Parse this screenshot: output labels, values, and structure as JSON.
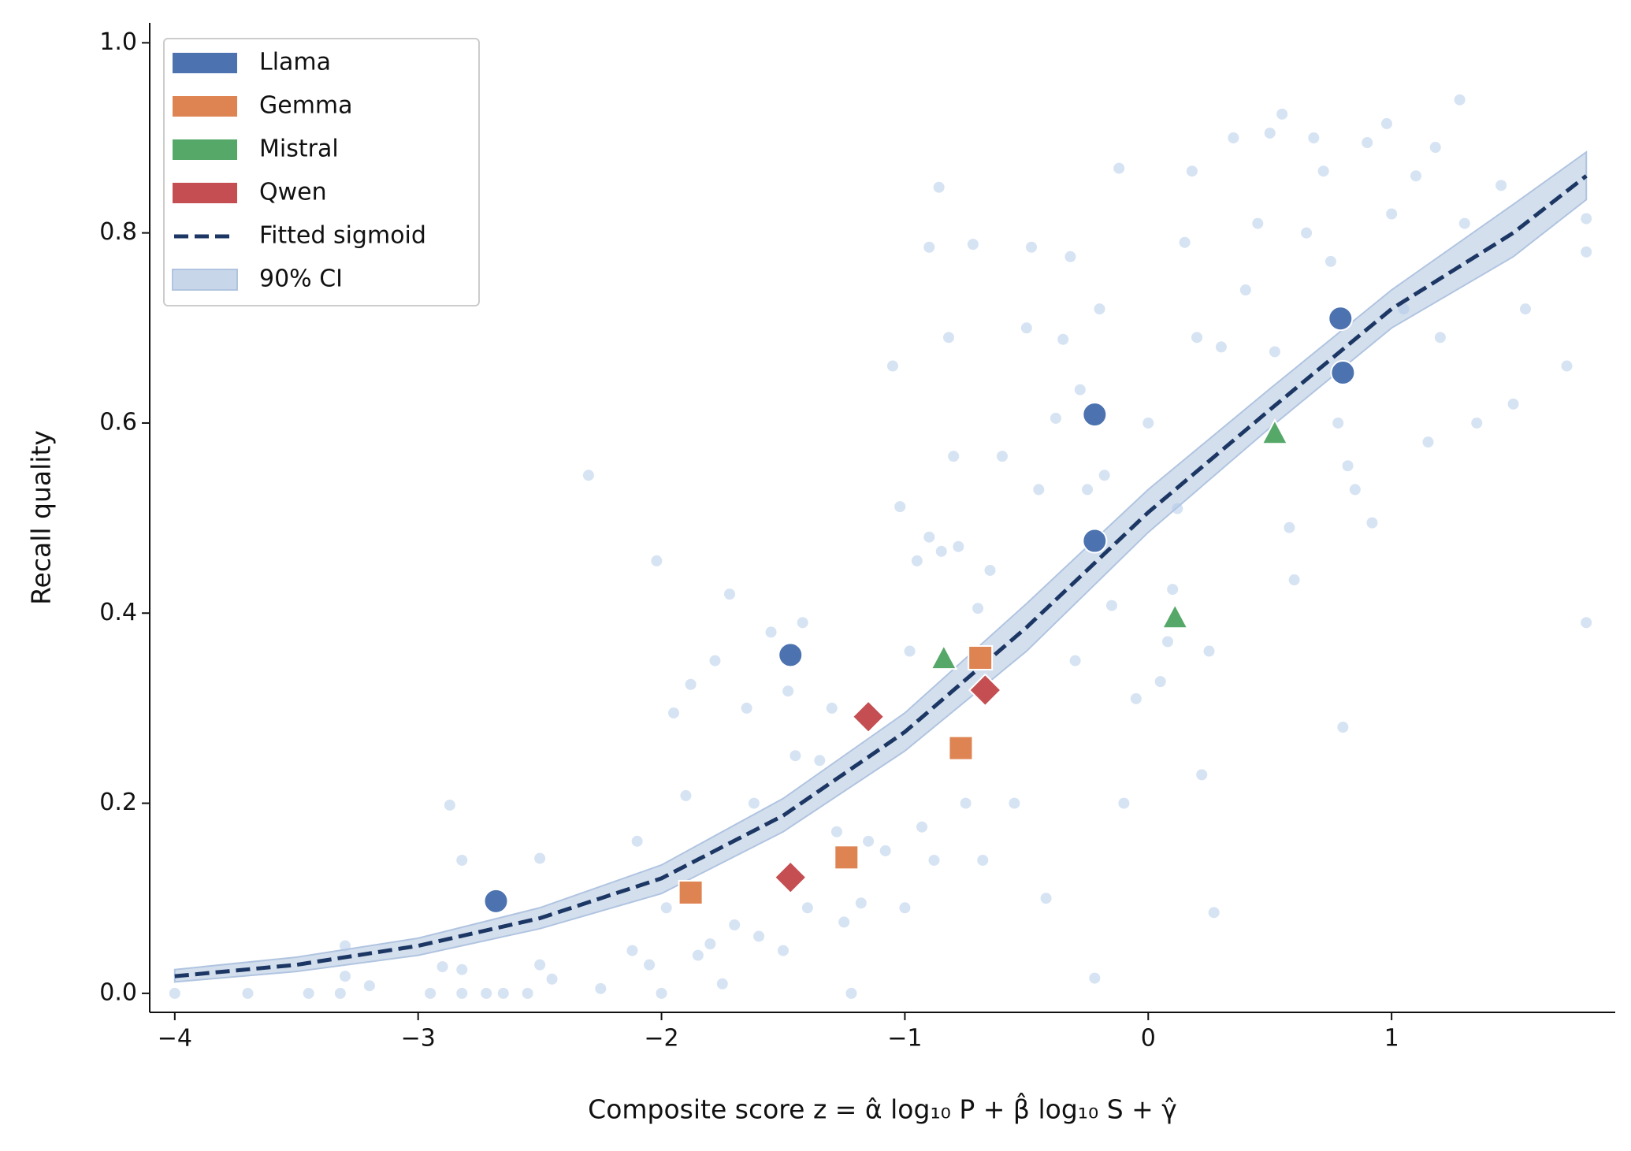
{
  "chart_data": {
    "type": "scatter",
    "x_label": "Composite score  z = α̂ log₁₀ P + β̂ log₁₀ S + γ̂",
    "y_label": "Recall quality",
    "xlim": [
      -4.103,
      1.919
    ],
    "ylim": [
      -0.02,
      1.021
    ],
    "xticks": [
      {
        "value": -4,
        "label": "−4"
      },
      {
        "value": -3,
        "label": "−3"
      },
      {
        "value": -2,
        "label": "−2"
      },
      {
        "value": -1,
        "label": "−1"
      },
      0,
      1
    ],
    "yticks": [
      {
        "value": 0,
        "label": "0.0"
      },
      0.2,
      0.4,
      0.6,
      0.8,
      {
        "value": 1,
        "label": "1.0"
      }
    ],
    "legend": "upper left",
    "background_points": {
      "color": "#aec7e8",
      "x": [
        -4,
        -3.7,
        -3.45,
        -3.32,
        -3.3,
        -3.3,
        -3.2,
        -2.95,
        -2.9,
        -2.87,
        -2.82,
        -2.82,
        -2.82,
        -2.72,
        -2.65,
        -2.55,
        -2.5,
        -2.5,
        -2.45,
        -2.3,
        -2.25,
        -2.12,
        -2.1,
        -2.05,
        -2.02,
        -2.0,
        -1.98,
        -1.95,
        -1.9,
        -1.88,
        -1.85,
        -1.8,
        -1.78,
        -1.75,
        -1.72,
        -1.7,
        -1.65,
        -1.62,
        -1.6,
        -1.55,
        -1.5,
        -1.48,
        -1.45,
        -1.42,
        -1.4,
        -1.35,
        -1.3,
        -1.28,
        -1.25,
        -1.22,
        -1.18,
        -1.15,
        -1.08,
        -1.05,
        -1.02,
        -1.0,
        -0.98,
        -0.95,
        -0.93,
        -0.9,
        -0.9,
        -0.88,
        -0.86,
        -0.85,
        -0.82,
        -0.8,
        -0.78,
        -0.75,
        -0.72,
        -0.7,
        -0.68,
        -0.65,
        -0.6,
        -0.55,
        -0.5,
        -0.48,
        -0.45,
        -0.42,
        -0.38,
        -0.35,
        -0.32,
        -0.3,
        -0.28,
        -0.25,
        -0.22,
        -0.2,
        -0.18,
        -0.15,
        -0.12,
        -0.1,
        -0.05,
        0,
        0.05,
        0.08,
        0.1,
        0.12,
        0.15,
        0.18,
        0.2,
        0.22,
        0.25,
        0.27,
        0.3,
        0.35,
        0.4,
        0.45,
        0.5,
        0.52,
        0.55,
        0.58,
        0.6,
        0.65,
        0.68,
        0.72,
        0.75,
        0.78,
        0.8,
        0.82,
        0.85,
        0.9,
        0.92,
        0.98,
        1.0,
        1.05,
        1.1,
        1.15,
        1.18,
        1.2,
        1.28,
        1.3,
        1.35,
        1.45,
        1.5,
        1.55,
        1.72,
        1.8,
        1.8,
        1.8
      ],
      "y": [
        0,
        0,
        0,
        0,
        0.018,
        0.05,
        0.008,
        0,
        0.028,
        0.198,
        0.14,
        0.025,
        0,
        0,
        0,
        0,
        0.03,
        0.142,
        0.015,
        0.545,
        0.005,
        0.045,
        0.16,
        0.03,
        0.455,
        0,
        0.09,
        0.295,
        0.208,
        0.325,
        0.04,
        0.052,
        0.35,
        0.01,
        0.42,
        0.072,
        0.3,
        0.2,
        0.06,
        0.38,
        0.045,
        0.318,
        0.25,
        0.39,
        0.09,
        0.245,
        0.3,
        0.17,
        0.075,
        0,
        0.095,
        0.16,
        0.15,
        0.66,
        0.512,
        0.09,
        0.36,
        0.455,
        0.175,
        0.785,
        0.48,
        0.14,
        0.848,
        0.465,
        0.69,
        0.565,
        0.47,
        0.2,
        0.788,
        0.405,
        0.14,
        0.445,
        0.565,
        0.2,
        0.7,
        0.785,
        0.53,
        0.1,
        0.605,
        0.688,
        0.775,
        0.35,
        0.635,
        0.53,
        0.016,
        0.72,
        0.545,
        0.408,
        0.868,
        0.2,
        0.31,
        0.6,
        0.328,
        0.37,
        0.425,
        0.51,
        0.79,
        0.865,
        0.69,
        0.23,
        0.36,
        0.085,
        0.68,
        0.9,
        0.74,
        0.81,
        0.905,
        0.675,
        0.925,
        0.49,
        0.435,
        0.8,
        0.9,
        0.865,
        0.77,
        0.6,
        0.28,
        0.555,
        0.53,
        0.895,
        0.495,
        0.915,
        0.82,
        0.72,
        0.86,
        0.58,
        0.89,
        0.69,
        0.94,
        0.81,
        0.6,
        0.85,
        0.62,
        0.72,
        0.66,
        0.39,
        0.78,
        0.815
      ]
    },
    "series": [
      {
        "name": "Llama",
        "color": "#4c72b0",
        "marker": "circle",
        "x": [
          -2.68,
          -1.47,
          -0.22,
          -0.22,
          0.79,
          0.8
        ],
        "y": [
          0.097,
          0.356,
          0.609,
          0.476,
          0.71,
          0.653
        ]
      },
      {
        "name": "Gemma",
        "color": "#dd8452",
        "marker": "square",
        "x": [
          -1.88,
          -1.24,
          -0.77,
          -0.69
        ],
        "y": [
          0.106,
          0.143,
          0.258,
          0.353
        ]
      },
      {
        "name": "Mistral",
        "color": "#55a868",
        "marker": "triangle",
        "x": [
          -0.84,
          0.11,
          0.52
        ],
        "y": [
          0.352,
          0.395,
          0.589
        ]
      },
      {
        "name": "Qwen",
        "color": "#c44e52",
        "marker": "diamond",
        "x": [
          -1.47,
          -1.15,
          -0.67
        ],
        "y": [
          0.122,
          0.291,
          0.319
        ]
      }
    ],
    "fit": {
      "name": "Fitted sigmoid",
      "color": "#1c3764",
      "x": [
        -4,
        -3.5,
        -3,
        -2.5,
        -2,
        -1.5,
        -1,
        -0.5,
        0,
        0.5,
        1,
        1.5,
        1.8
      ],
      "y": [
        0.018,
        0.03,
        0.05,
        0.079,
        0.121,
        0.187,
        0.275,
        0.385,
        0.506,
        0.614,
        0.72,
        0.8,
        0.86
      ]
    },
    "ci": {
      "name": "90% CI",
      "color": "#b0c4e0",
      "x": [
        -4,
        -3.5,
        -3,
        -2.5,
        -2,
        -1.5,
        -1,
        -0.5,
        0,
        0.5,
        1,
        1.5,
        1.8
      ],
      "lower": [
        0.012,
        0.023,
        0.04,
        0.068,
        0.105,
        0.17,
        0.255,
        0.36,
        0.485,
        0.595,
        0.7,
        0.775,
        0.835
      ],
      "upper": [
        0.025,
        0.038,
        0.058,
        0.09,
        0.135,
        0.205,
        0.295,
        0.41,
        0.53,
        0.636,
        0.74,
        0.83,
        0.885
      ]
    }
  }
}
